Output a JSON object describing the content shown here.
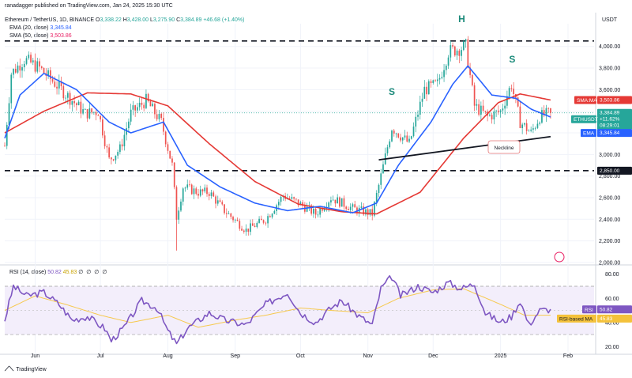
{
  "header": {
    "author": "ranadagger published on TradingView.com, Jan 24, 2025 15:30 UTC",
    "symbol_line": "Ethereum / TetherUS, 1D, BINANCE",
    "o_label": "O",
    "o": "3,338.22",
    "h_label": "H",
    "h": "3,428.00",
    "l_label": "L",
    "l": "3,275.90",
    "c_label": "C",
    "c": "3,384.89",
    "change": "+46.68 (+1.40%)",
    "ema_line": "EMA (20, close)",
    "ema_value": "3,345.84",
    "sma_line": "SMA (50, close)",
    "sma_value": "3,503.86",
    "currency": "USDT"
  },
  "rsi_header": {
    "label": "RSI (14, close)",
    "rsi_value": "50.82",
    "ma_value": "45.83",
    "dots": "∅ ∅ ∅ ∅"
  },
  "footer": {
    "brand": "TradingView"
  },
  "colors": {
    "up": "#26a69a",
    "down": "#ef5350",
    "ema": "#2962ff",
    "sma": "#e53935",
    "rsi": "#7e57c2",
    "rsi_ma": "#f6c94e",
    "neckline": "#131722",
    "level": "#131722"
  },
  "chart_data": [
    {
      "type": "candlestick",
      "title": "Ethereum / TetherUS, 1D, BINANCE",
      "y_axis_labels": [
        "4,000.00",
        "3,800.00",
        "3,600.00",
        "3,400.00",
        "3,200.00",
        "3,000.00",
        "2,800.00",
        "2,600.00",
        "2,400.00",
        "2,200.00",
        "2,000.00"
      ],
      "x_axis_labels": [
        "Jun",
        "Jul",
        "Aug",
        "Sep",
        "Oct",
        "Nov",
        "Dec",
        "2025",
        "Feb"
      ],
      "ylim": [
        1985,
        4210
      ],
      "annotations": {
        "left_shoulder": "S",
        "head": "H",
        "right_shoulder": "S",
        "neckline": "Neckline"
      },
      "horizontal_levels": {
        "upper": 4050,
        "lower": 2850
      },
      "neckline": {
        "start": [
          "2024-11-06",
          2950
        ],
        "end": [
          "2025-01-24",
          3165
        ]
      },
      "badges": {
        "sma": {
          "label": "SMA:MA",
          "value": "3,503.86"
        },
        "price": {
          "label": "ETHUSDT",
          "value": "3,384.89",
          "change": "+11.62%",
          "countdown": "08:29:01"
        },
        "ema": {
          "label": "EMA",
          "value": "3,345.84"
        },
        "level": {
          "value": "2,850.00"
        }
      },
      "series": [
        {
          "name": "ETHUSDT",
          "kind": "ohlc_anchors",
          "dates": [
            "2024-05-18",
            "2024-05-21",
            "2024-05-27",
            "2024-06-03",
            "2024-06-12",
            "2024-06-18",
            "2024-06-24",
            "2024-06-30",
            "2024-07-05",
            "2024-07-10",
            "2024-07-15",
            "2024-07-22",
            "2024-07-29",
            "2024-08-03",
            "2024-08-05",
            "2024-08-08",
            "2024-08-15",
            "2024-08-20",
            "2024-08-27",
            "2024-09-06",
            "2024-09-15",
            "2024-09-23",
            "2024-09-30",
            "2024-10-08",
            "2024-10-15",
            "2024-10-25",
            "2024-11-03",
            "2024-11-07",
            "2024-11-12",
            "2024-11-20",
            "2024-11-27",
            "2024-12-03",
            "2024-12-08",
            "2024-12-16",
            "2024-12-20",
            "2024-12-26",
            "2025-01-01",
            "2025-01-06",
            "2025-01-10",
            "2025-01-15",
            "2025-01-19",
            "2025-01-24"
          ],
          "close": [
            3080,
            3750,
            3880,
            3800,
            3620,
            3500,
            3380,
            3400,
            2950,
            3050,
            3380,
            3500,
            3300,
            2900,
            2420,
            2700,
            2650,
            2650,
            2480,
            2300,
            2400,
            2620,
            2550,
            2450,
            2600,
            2500,
            2450,
            2800,
            3250,
            3100,
            3600,
            3650,
            3950,
            4000,
            3450,
            3350,
            3400,
            3650,
            3300,
            3200,
            3350,
            3385
          ]
        },
        {
          "name": "EMA (20, close)",
          "dates": [
            "2024-05-18",
            "2024-05-25",
            "2024-06-05",
            "2024-06-20",
            "2024-07-05",
            "2024-07-15",
            "2024-07-30",
            "2024-08-10",
            "2024-08-25",
            "2024-09-10",
            "2024-09-25",
            "2024-10-10",
            "2024-10-25",
            "2024-11-05",
            "2024-11-15",
            "2024-11-30",
            "2024-12-10",
            "2024-12-17",
            "2024-12-28",
            "2025-01-08",
            "2025-01-15",
            "2025-01-24"
          ],
          "values": [
            3150,
            3550,
            3750,
            3600,
            3300,
            3200,
            3300,
            2900,
            2700,
            2550,
            2480,
            2520,
            2460,
            2550,
            2900,
            3300,
            3650,
            3820,
            3550,
            3520,
            3420,
            3346
          ]
        },
        {
          "name": "SMA (50, close)",
          "dates": [
            "2024-05-18",
            "2024-06-05",
            "2024-06-25",
            "2024-07-15",
            "2024-08-01",
            "2024-08-20",
            "2024-09-10",
            "2024-09-30",
            "2024-10-20",
            "2024-11-05",
            "2024-11-25",
            "2024-12-15",
            "2024-12-31",
            "2025-01-10",
            "2025-01-24"
          ],
          "values": [
            3200,
            3400,
            3570,
            3560,
            3450,
            3100,
            2750,
            2540,
            2470,
            2450,
            2650,
            3150,
            3480,
            3560,
            3504
          ]
        }
      ]
    },
    {
      "type": "line",
      "title": "RSI (14, close)",
      "y_axis_labels": [
        "80.00",
        "60.00",
        "40.00",
        "20.00"
      ],
      "ylim": [
        15,
        87
      ],
      "bands": {
        "upper": 70,
        "lower": 30
      },
      "badges": {
        "rsi": {
          "label": "RSI",
          "value": "50.82"
        },
        "ma": {
          "label": "RSI-based MA",
          "value": "45.83"
        }
      },
      "series": [
        {
          "name": "RSI",
          "dates": [
            "2024-05-18",
            "2024-05-22",
            "2024-05-28",
            "2024-06-05",
            "2024-06-12",
            "2024-06-18",
            "2024-06-25",
            "2024-07-03",
            "2024-07-06",
            "2024-07-12",
            "2024-07-20",
            "2024-07-27",
            "2024-08-01",
            "2024-08-05",
            "2024-08-10",
            "2024-08-20",
            "2024-08-27",
            "2024-09-06",
            "2024-09-15",
            "2024-09-25",
            "2024-10-01",
            "2024-10-08",
            "2024-10-15",
            "2024-10-20",
            "2024-10-28",
            "2024-11-03",
            "2024-11-07",
            "2024-11-12",
            "2024-11-16",
            "2024-11-24",
            "2024-12-01",
            "2024-12-08",
            "2024-12-14",
            "2024-12-20",
            "2024-12-25",
            "2025-01-01",
            "2025-01-06",
            "2025-01-10",
            "2025-01-14",
            "2025-01-19",
            "2025-01-24"
          ],
          "values": [
            42,
            70,
            62,
            65,
            55,
            42,
            45,
            35,
            25,
            36,
            58,
            52,
            33,
            22,
            35,
            48,
            42,
            38,
            55,
            65,
            48,
            40,
            52,
            58,
            45,
            38,
            68,
            78,
            62,
            70,
            65,
            73,
            68,
            72,
            48,
            40,
            45,
            58,
            38,
            50,
            51
          ]
        },
        {
          "name": "RSI-based MA",
          "dates": [
            "2024-05-18",
            "2024-06-01",
            "2024-06-15",
            "2024-07-01",
            "2024-07-15",
            "2024-08-01",
            "2024-08-15",
            "2024-09-01",
            "2024-09-15",
            "2024-10-01",
            "2024-10-15",
            "2024-11-01",
            "2024-11-15",
            "2024-12-01",
            "2024-12-15",
            "2025-01-01",
            "2025-01-12",
            "2025-01-24"
          ],
          "values": [
            50,
            62,
            55,
            46,
            40,
            46,
            36,
            42,
            46,
            52,
            50,
            48,
            60,
            67,
            68,
            55,
            46,
            46
          ]
        }
      ]
    }
  ]
}
